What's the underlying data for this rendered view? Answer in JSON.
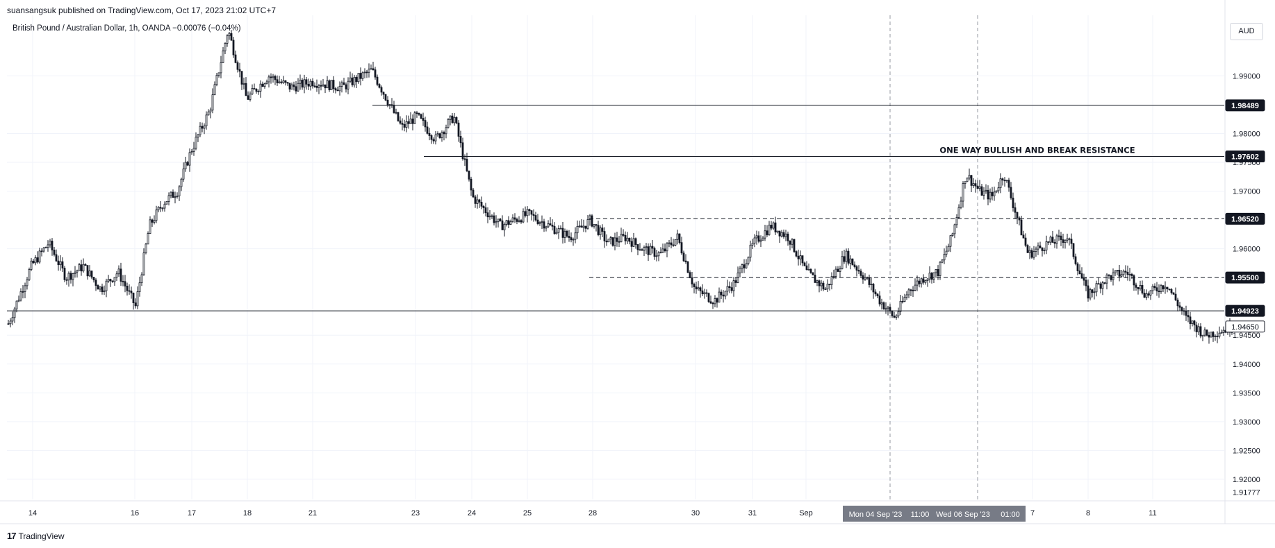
{
  "header": {
    "published": "suansangsuk published on TradingView.com, Oct 17, 2023 21:02 UTC+7"
  },
  "legend": {
    "symbol": "British Pound / Australian Dollar, 1h, OANDA",
    "change": "−0.00076 (−0.04%)"
  },
  "currency_button": "AUD",
  "footer": {
    "logo_mark": "17",
    "brand": "TradingView"
  },
  "colors": {
    "candle": "#131722",
    "axis_text": "#131722",
    "grid": "#f0f3fa",
    "crosshair_label_bg": "#777b86"
  },
  "chart_data": {
    "type": "candlestick",
    "title": "",
    "symbol": "British Pound / Australian Dollar",
    "interval": "1h",
    "ylim": [
      1.9165,
      1.9998
    ],
    "y_ticks": [
      "1.99000",
      "1.98000",
      "1.97500",
      "1.97000",
      "1.96000",
      "1.94500",
      "1.94000",
      "1.93500",
      "1.93000",
      "1.92500",
      "1.92000"
    ],
    "x_ticks": [
      "14",
      "16",
      "17",
      "18",
      "21",
      "23",
      "24",
      "25",
      "28",
      "30",
      "31",
      "Sep",
      "7",
      "8",
      "11"
    ],
    "price_labels": [
      {
        "text": "1.98489",
        "value": 1.98489
      },
      {
        "text": "1.97602",
        "value": 1.97602
      },
      {
        "text": "1.96520",
        "value": 1.9652
      },
      {
        "text": "1.95500",
        "value": 1.955
      },
      {
        "text": "1.94923",
        "value": 1.94923
      },
      {
        "text": "1.94650",
        "value": 1.9465,
        "style": "current"
      },
      {
        "text": "1.91777",
        "value": 1.91777,
        "style": "plain"
      }
    ],
    "levels": [
      {
        "value": 1.98489,
        "style": "solid",
        "from_date": "Aug 22"
      },
      {
        "value": 1.97602,
        "style": "solid",
        "from_date": "Aug 23"
      },
      {
        "value": 1.9652,
        "style": "dashed",
        "from_date": "Aug 28"
      },
      {
        "value": 1.955,
        "style": "dashed",
        "from_date": "Aug 28"
      },
      {
        "value": 1.94923,
        "style": "solid",
        "from_date": "Aug 14"
      }
    ],
    "annotation": {
      "text": "ONE WAY BULLISH AND BREAK RESISTANCE",
      "value": 1.977
    },
    "crosshair_labels": [
      "Mon 04 Sep '23",
      "11:00",
      "Wed 06 Sep '23",
      "01:00"
    ],
    "price_path": [
      {
        "date": "Aug 11",
        "close": 1.947
      },
      {
        "date": "Aug 11",
        "close": 1.952
      },
      {
        "date": "Aug 14",
        "close": 1.957
      },
      {
        "date": "Aug 14",
        "close": 1.961
      },
      {
        "date": "Aug 14",
        "close": 1.955
      },
      {
        "date": "Aug 15",
        "close": 1.957
      },
      {
        "date": "Aug 15",
        "close": 1.953
      },
      {
        "date": "Aug 15",
        "close": 1.956
      },
      {
        "date": "Aug 16",
        "close": 1.95
      },
      {
        "date": "Aug 16",
        "close": 1.964
      },
      {
        "date": "Aug 16",
        "close": 1.968
      },
      {
        "date": "Aug 16",
        "close": 1.97
      },
      {
        "date": "Aug 17",
        "close": 1.977
      },
      {
        "date": "Aug 17",
        "close": 1.984
      },
      {
        "date": "Aug 17",
        "close": 1.998
      },
      {
        "date": "Aug 18",
        "close": 1.986
      },
      {
        "date": "Aug 18",
        "close": 1.99
      },
      {
        "date": "Aug 18",
        "close": 1.988
      },
      {
        "date": "Aug 21",
        "close": 1.989
      },
      {
        "date": "Aug 21",
        "close": 1.988
      },
      {
        "date": "Aug 22",
        "close": 1.991
      },
      {
        "date": "Aug 22",
        "close": 1.986
      },
      {
        "date": "Aug 22",
        "close": 1.981
      },
      {
        "date": "Aug 23",
        "close": 1.983
      },
      {
        "date": "Aug 23",
        "close": 1.979
      },
      {
        "date": "Aug 23",
        "close": 1.983
      },
      {
        "date": "Aug 24",
        "close": 1.969
      },
      {
        "date": "Aug 24",
        "close": 1.964
      },
      {
        "date": "Aug 25",
        "close": 1.966
      },
      {
        "date": "Aug 25",
        "close": 1.964
      },
      {
        "date": "Aug 25",
        "close": 1.962
      },
      {
        "date": "Aug 28",
        "close": 1.965
      },
      {
        "date": "Aug 28",
        "close": 1.961
      },
      {
        "date": "Aug 28",
        "close": 1.962
      },
      {
        "date": "Aug 29",
        "close": 1.96
      },
      {
        "date": "Aug 29",
        "close": 1.959
      },
      {
        "date": "Aug 29",
        "close": 1.962
      },
      {
        "date": "Aug 30",
        "close": 1.953
      },
      {
        "date": "Aug 30",
        "close": 1.951
      },
      {
        "date": "Aug 30",
        "close": 1.954
      },
      {
        "date": "Aug 31",
        "close": 1.961
      },
      {
        "date": "Aug 31",
        "close": 1.964
      },
      {
        "date": "Aug 31",
        "close": 1.962
      },
      {
        "date": "Sep 01",
        "close": 1.956
      },
      {
        "date": "Sep 01",
        "close": 1.953
      },
      {
        "date": "Sep 01",
        "close": 1.959
      },
      {
        "date": "Sep 04",
        "close": 1.955
      },
      {
        "date": "Sep 04",
        "close": 1.951
      },
      {
        "date": "Sep 04",
        "close": 1.948
      },
      {
        "date": "Sep 04",
        "close": 1.953
      },
      {
        "date": "Sep 05",
        "close": 1.955
      },
      {
        "date": "Sep 05",
        "close": 1.956
      },
      {
        "date": "Sep 05",
        "close": 1.962
      },
      {
        "date": "Sep 05",
        "close": 1.973
      },
      {
        "date": "Sep 06",
        "close": 1.97
      },
      {
        "date": "Sep 06",
        "close": 1.969
      },
      {
        "date": "Sep 06",
        "close": 1.973
      },
      {
        "date": "Sep 06",
        "close": 1.966
      },
      {
        "date": "Sep 07",
        "close": 1.959
      },
      {
        "date": "Sep 07",
        "close": 1.961
      },
      {
        "date": "Sep 07",
        "close": 1.962
      },
      {
        "date": "Sep 08",
        "close": 1.952
      },
      {
        "date": "Sep 08",
        "close": 1.955
      },
      {
        "date": "Sep 08",
        "close": 1.956
      },
      {
        "date": "Sep 11",
        "close": 1.952
      },
      {
        "date": "Sep 11",
        "close": 1.954
      },
      {
        "date": "Sep 11",
        "close": 1.948
      },
      {
        "date": "Sep 12",
        "close": 1.945
      },
      {
        "date": "Sep 12",
        "close": 1.9465
      }
    ]
  }
}
